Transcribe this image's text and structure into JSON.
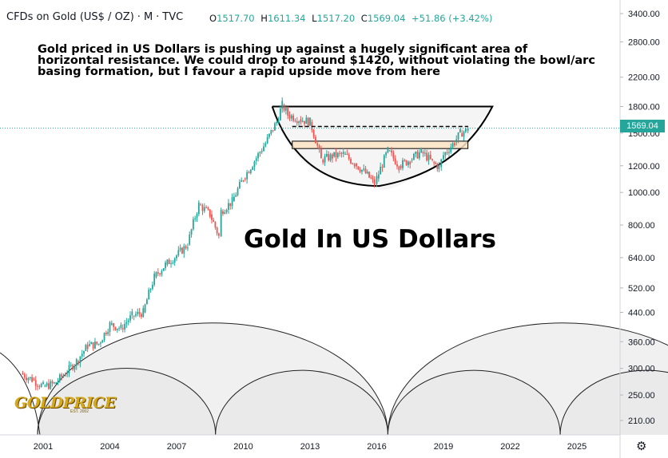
{
  "header": {
    "symbol_title": "CFDs on Gold (US$ / OZ)",
    "interval": "M",
    "source": "TVC",
    "open_label": "O",
    "open": "1517.70",
    "high_label": "H",
    "high": "1611.34",
    "low_label": "L",
    "low": "1517.20",
    "close_label": "C",
    "close": "1569.04",
    "change": "+51.86 (+3.42%)"
  },
  "annotation_text": "Gold priced in US Dollars is pushing up against a hugely significant area of horizontal resistance. We could drop to around $1420, without violating the bowl/arc basing formation, but I favour a rapid upside move from here",
  "big_title": "Gold In US Dollars",
  "logo": {
    "text": "GOLDPRICE",
    "sub": "EST. 2002"
  },
  "price_tag": "1569.04",
  "settings_icon": "gear-icon",
  "colors": {
    "up": "#26a69a",
    "down": "#ef5350",
    "tag": "#26a69a",
    "arc_fill": "#e3e3e3",
    "zone": "#fbe3c4"
  },
  "chart_data": {
    "type": "candlestick",
    "x_axis": {
      "ticks": [
        "2001",
        "2004",
        "2007",
        "2010",
        "2013",
        "2016",
        "2019",
        "2022",
        "2025"
      ],
      "range": [
        1999.9,
        2027.9
      ]
    },
    "y_axis": {
      "scale": "log",
      "ticks": [
        "3400.00",
        "2800.00",
        "2200.00",
        "1800.00",
        "1500.00",
        "1200.00",
        "1000.00",
        "800.00",
        "640.00",
        "520.00",
        "440.00",
        "360.00",
        "300.00",
        "250.00",
        "210.00"
      ],
      "range": [
        185,
        3650
      ]
    },
    "last_price": 1569.04,
    "resistance_level": 1570,
    "support_zone": [
      1350,
      1420
    ],
    "series": [
      {
        "type": "candles",
        "values": [
          [
            2000,
            290
          ],
          [
            2000.5,
            278
          ],
          [
            2001,
            265
          ],
          [
            2001.5,
            270
          ],
          [
            2002,
            290
          ],
          [
            2002.5,
            315
          ],
          [
            2003,
            350
          ],
          [
            2003.5,
            355
          ],
          [
            2004,
            405
          ],
          [
            2004.5,
            395
          ],
          [
            2005,
            430
          ],
          [
            2005.5,
            440
          ],
          [
            2006,
            560
          ],
          [
            2006.5,
            610
          ],
          [
            2007,
            650
          ],
          [
            2007.5,
            700
          ],
          [
            2008,
            920
          ],
          [
            2008.5,
            860
          ],
          [
            2008.9,
            740
          ],
          [
            2009,
            880
          ],
          [
            2009.5,
            940
          ],
          [
            2010,
            1100
          ],
          [
            2010.5,
            1240
          ],
          [
            2011,
            1400
          ],
          [
            2011.5,
            1620
          ],
          [
            2011.75,
            1820
          ],
          [
            2012,
            1700
          ],
          [
            2012.5,
            1650
          ],
          [
            2013,
            1620
          ],
          [
            2013.5,
            1250
          ],
          [
            2014,
            1280
          ],
          [
            2014.5,
            1300
          ],
          [
            2015,
            1220
          ],
          [
            2015.5,
            1140
          ],
          [
            2015.9,
            1060
          ],
          [
            2016,
            1100
          ],
          [
            2016.5,
            1330
          ],
          [
            2017,
            1200
          ],
          [
            2017.5,
            1250
          ],
          [
            2018,
            1320
          ],
          [
            2018.5,
            1230
          ],
          [
            2018.8,
            1190
          ],
          [
            2019,
            1290
          ],
          [
            2019.5,
            1410
          ],
          [
            2019.75,
            1500
          ],
          [
            2020,
            1525
          ],
          [
            2020.1,
            1569
          ]
        ]
      }
    ]
  }
}
